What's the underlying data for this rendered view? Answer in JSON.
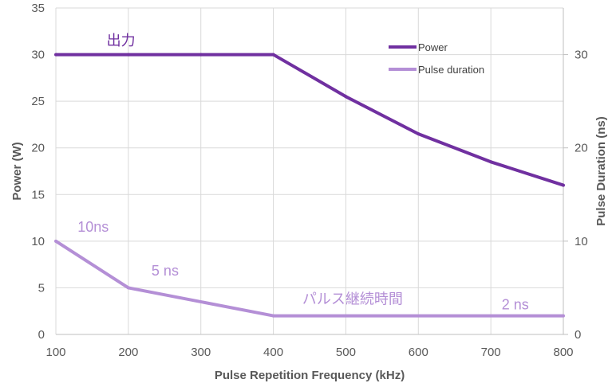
{
  "chart_data": {
    "type": "line",
    "title": "",
    "xlabel": "Pulse Repetition Frequency (kHz)",
    "ylabel": "Power (W)",
    "y2label": "Pulse Duration (ns)",
    "xlim": [
      100,
      800
    ],
    "ylim": [
      0,
      35
    ],
    "y2lim": [
      0,
      35
    ],
    "x_ticks": [
      "100",
      "200",
      "300",
      "400",
      "500",
      "600",
      "700",
      "800"
    ],
    "y_ticks": [
      "0",
      "5",
      "10",
      "15",
      "20",
      "25",
      "30",
      "35"
    ],
    "y2_ticks": [
      "0",
      "10",
      "20",
      "30"
    ],
    "grid": true,
    "legend_position": "top-right",
    "series": [
      {
        "name": "Power",
        "axis": "left",
        "color": "#7030a0",
        "x": [
          100,
          200,
          300,
          400,
          500,
          600,
          700,
          800
        ],
        "y": [
          30,
          30,
          30,
          30,
          25.5,
          21.5,
          18.5,
          16
        ]
      },
      {
        "name": "Pulse duration",
        "axis": "right",
        "color": "#b48fd6",
        "x": [
          100,
          200,
          400,
          800
        ],
        "y": [
          10,
          5,
          2,
          2
        ]
      }
    ],
    "annotations": [
      {
        "text": "出力",
        "x": 170,
        "y": 31,
        "color": "#7030a0"
      },
      {
        "text": "10ns",
        "x": 130,
        "y": 11,
        "color": "#b48fd6"
      },
      {
        "text": "5 ns",
        "x": 232,
        "y": 6.3,
        "color": "#b48fd6"
      },
      {
        "text": "パルス継続時間",
        "x": 440,
        "y": 3.3,
        "color": "#b48fd6"
      },
      {
        "text": "2 ns",
        "x": 715,
        "y": 2.7,
        "color": "#b48fd6"
      }
    ]
  }
}
